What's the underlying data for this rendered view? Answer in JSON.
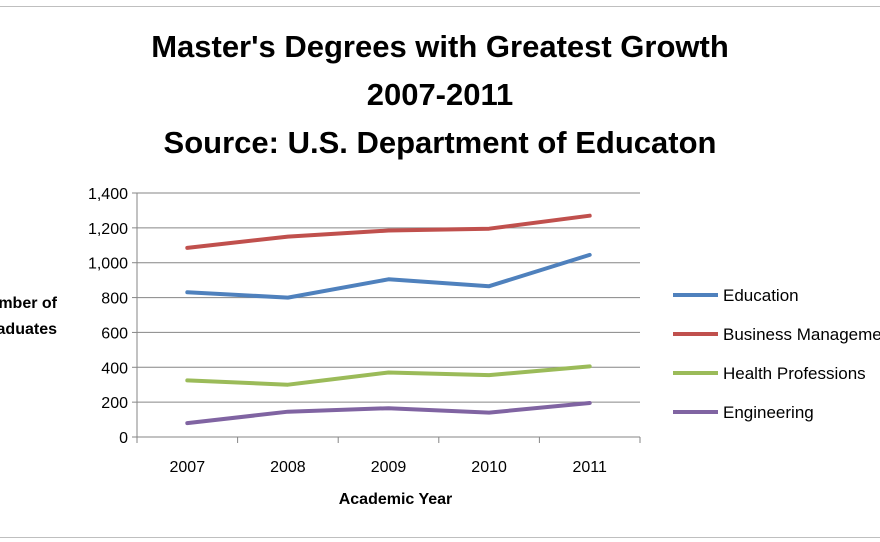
{
  "chart_data": {
    "type": "line",
    "title_lines": [
      "Master's Degrees with Greatest Growth",
      "2007-2011",
      "Source: U.S. Department of Educaton"
    ],
    "xlabel": "Academic Year",
    "ylabel_lines": [
      "Number of",
      "Graduates"
    ],
    "categories": [
      "2007",
      "2008",
      "2009",
      "2010",
      "2011"
    ],
    "ylim": [
      0,
      1400
    ],
    "ytick_step": 200,
    "ytick_labels": [
      "0",
      "200",
      "400",
      "600",
      "800",
      "1,000",
      "1,200",
      "1,400"
    ],
    "grid": true,
    "legend_position": "right",
    "series": [
      {
        "name": "Education",
        "color": "#4f81bd",
        "values": [
          830,
          800,
          905,
          865,
          1045
        ]
      },
      {
        "name": "Business Management",
        "color": "#c0504d",
        "values": [
          1085,
          1150,
          1185,
          1195,
          1270
        ]
      },
      {
        "name": "Health Professions",
        "color": "#9bbb59",
        "values": [
          325,
          300,
          370,
          355,
          405
        ]
      },
      {
        "name": "Engineering",
        "color": "#8064a2",
        "values": [
          80,
          145,
          165,
          140,
          195
        ]
      }
    ]
  }
}
